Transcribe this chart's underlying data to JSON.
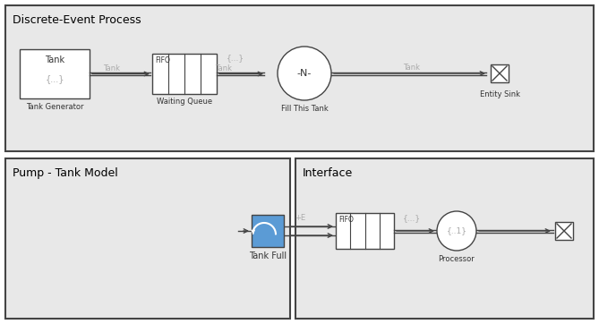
{
  "bg_color": "#ffffff",
  "panel_bg": "#e8e8e8",
  "box_bg": "#ffffff",
  "box_edge": "#444444",
  "title_top": "Discrete-Event Process",
  "title_bottom_left": "Pump - Tank Model",
  "title_bottom_right": "Interface",
  "gray_text": "#aaaaaa",
  "dark_text": "#333333",
  "blue_fill": "#5b9bd5",
  "fig_w": 669,
  "fig_h": 362
}
